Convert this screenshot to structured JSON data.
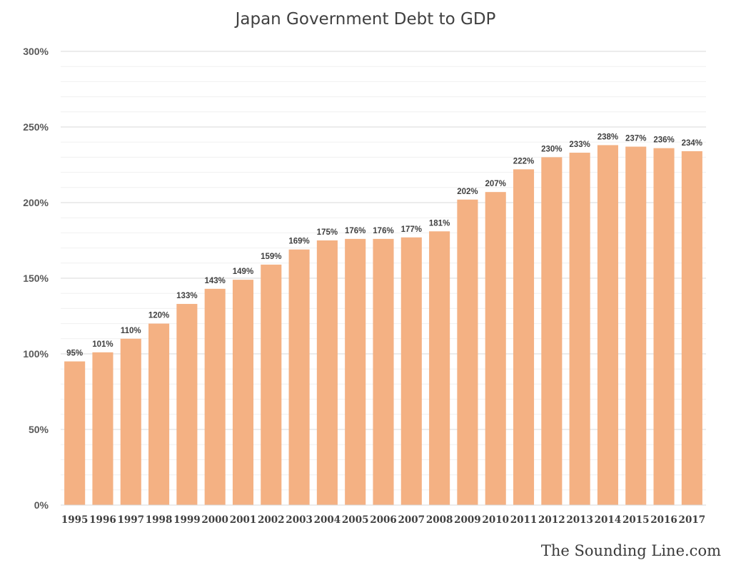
{
  "chart_data": {
    "type": "bar",
    "title": "Japan Government Debt to GDP",
    "xlabel": "",
    "ylabel": "",
    "categories": [
      "1995",
      "1996",
      "1997",
      "1998",
      "1999",
      "2000",
      "2001",
      "2002",
      "2003",
      "2004",
      "2005",
      "2006",
      "2007",
      "2008",
      "2009",
      "2010",
      "2011",
      "2012",
      "2013",
      "2014",
      "2015",
      "2016",
      "2017"
    ],
    "values": [
      95,
      101,
      110,
      120,
      133,
      143,
      149,
      159,
      169,
      175,
      176,
      176,
      177,
      181,
      202,
      207,
      222,
      230,
      233,
      238,
      237,
      236,
      234
    ],
    "value_labels": [
      "95%",
      "101%",
      "110%",
      "120%",
      "133%",
      "143%",
      "149%",
      "159%",
      "169%",
      "175%",
      "176%",
      "176%",
      "177%",
      "181%",
      "202%",
      "207%",
      "222%",
      "230%",
      "233%",
      "238%",
      "237%",
      "236%",
      "234%"
    ],
    "ylim": [
      0,
      300
    ],
    "yticks": [
      0,
      50,
      100,
      150,
      200,
      250,
      300
    ],
    "ytick_labels": [
      "0%",
      "50%",
      "100%",
      "150%",
      "200%",
      "250%",
      "300%"
    ],
    "grid": true,
    "legend": "none",
    "bar_color": "#F4B183"
  },
  "watermark": "The Sounding Line.com"
}
